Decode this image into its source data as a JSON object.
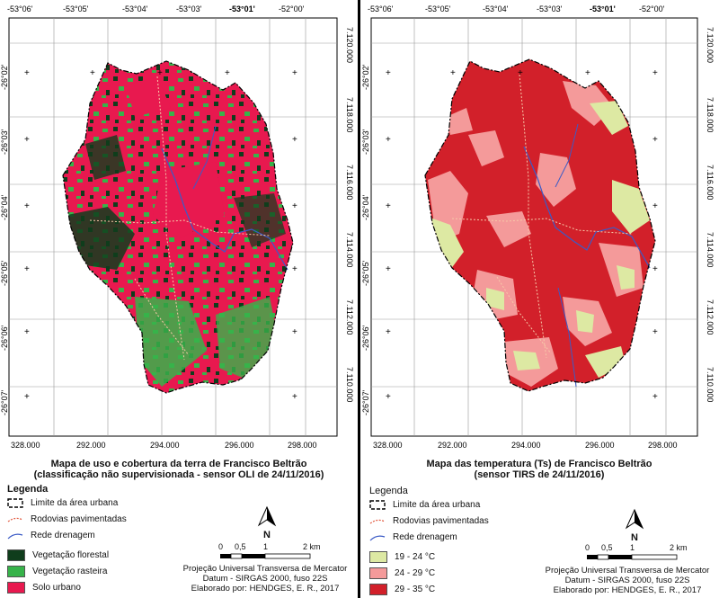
{
  "left": {
    "top_lon_labels": [
      "-53°06'",
      "-53°05'",
      "-53°04'",
      "-53°03'",
      "-53°01'",
      "-52°00'"
    ],
    "bottom_x_labels": [
      "328.000",
      "292.000",
      "294.000",
      "296.000",
      "298.000"
    ],
    "left_lat_labels": [
      "-26°02'",
      "-26°03'",
      "-26°04'",
      "-26°05'",
      "-26°06'",
      "-26°07'"
    ],
    "right_y_labels": [
      "7.120.000",
      "7.118.000",
      "7.116.000",
      "7.114.000",
      "7.112.000",
      "7.110.000"
    ],
    "title_line1": "Mapa de uso e cobertura da terra de Francisco Beltrão",
    "title_line2": "(classificação não supervisionada - sensor OLI de 24/11/2016)",
    "legend_title": "Legenda",
    "legend": [
      {
        "label": "Limite da área urbana",
        "kind": "boundary",
        "color": "#000000"
      },
      {
        "label": "Rodovias pavimentadas",
        "kind": "road",
        "color": "#e2583e"
      },
      {
        "label": "Rede drenagem",
        "kind": "river",
        "color": "#3b5bc6"
      },
      {
        "label": "Vegetação florestal",
        "kind": "fill",
        "color": "#0f3d1c"
      },
      {
        "label": "Vegetação rasteira",
        "kind": "fill",
        "color": "#37b34a"
      },
      {
        "label": "Solo urbano",
        "kind": "fill",
        "color": "#e8194f"
      }
    ],
    "north_label": "N",
    "scale_labels": [
      "0",
      "0,5",
      "1",
      "2 km"
    ],
    "credits": [
      "Projeção Universal Transversa de Mercator",
      "Datum - SIRGAS 2000, fuso 22S",
      "Elaborado por: HENDGES, E. R., 2017"
    ]
  },
  "right": {
    "top_lon_labels": [
      "-53°06'",
      "-53°05'",
      "-53°04'",
      "-53°03'",
      "-53°01'",
      "-52°00'"
    ],
    "bottom_x_labels": [
      "328.000",
      "292.000",
      "294.000",
      "296.000",
      "298.000"
    ],
    "left_lat_labels": [
      "-26°02'",
      "-26°03'",
      "-26°04'",
      "-26°05'",
      "-26°06'",
      "-26°07'"
    ],
    "right_y_labels": [
      "7.120.000",
      "7.118.000",
      "7.116.000",
      "7.114.000",
      "7.112.000",
      "7.110.000"
    ],
    "title_line1": "Mapa das temperatura (Ts) de Francisco Beltrão",
    "title_line2": "(sensor TIRS de 24/11/2016)",
    "legend_title": "Legenda",
    "legend": [
      {
        "label": "Limite da área urbana",
        "kind": "boundary",
        "color": "#000000"
      },
      {
        "label": "Rodovias pavimentadas",
        "kind": "road",
        "color": "#e2583e"
      },
      {
        "label": "Rede drenagem",
        "kind": "river",
        "color": "#3b5bc6"
      },
      {
        "label": "19 - 24 °C",
        "kind": "fill",
        "color": "#dde9a3"
      },
      {
        "label": "24 - 29 °C",
        "kind": "fill",
        "color": "#f49a9a"
      },
      {
        "label": "29 - 35 °C",
        "kind": "fill",
        "color": "#d2202a"
      }
    ],
    "north_label": "N",
    "scale_labels": [
      "0",
      "0,5",
      "1",
      "2 km"
    ],
    "credits": [
      "Projeção Universal Transversa de Mercator",
      "Datum - SIRGAS 2000, fuso 22S",
      "Elaborado por: HENDGES, E. R., 2017"
    ]
  }
}
